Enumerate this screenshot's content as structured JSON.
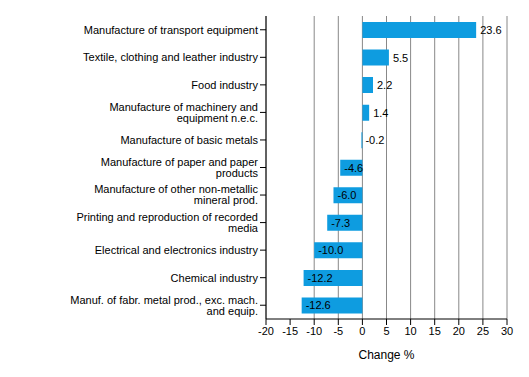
{
  "chart_data": {
    "type": "bar",
    "orientation": "horizontal",
    "categories": [
      "Manufacture of transport equipment",
      "Textile, clothing and leather industry",
      "Food industry",
      "Manufacture of machinery and equipment n.e.c.",
      "Manufacture of basic metals",
      "Manufacture of paper and paper products",
      "Manufacture of other non-metallic mineral prod.",
      "Printing and reproduction of recorded media",
      "Electrical and electronics industry",
      "Chemical industry",
      "Manuf. of fabr. metal prod., exc. mach. and equip."
    ],
    "values": [
      23.6,
      5.5,
      2.2,
      1.4,
      -0.2,
      -4.6,
      -6.0,
      -7.3,
      -10.0,
      -12.2,
      -12.6
    ],
    "value_labels": [
      "23.6",
      "5.5",
      "2.2",
      "1.4",
      "-0.2",
      "-4.6",
      "-6.0",
      "-7.3",
      "-10.0",
      "-12.2",
      "-12.6"
    ],
    "data_labels": true,
    "color": "#0e9ce0",
    "x_label": "Change %",
    "xlim": [
      -20,
      30
    ],
    "xticks": [
      -20,
      -15,
      -10,
      -5,
      0,
      5,
      10,
      15,
      20,
      25,
      30
    ],
    "grid": true
  }
}
